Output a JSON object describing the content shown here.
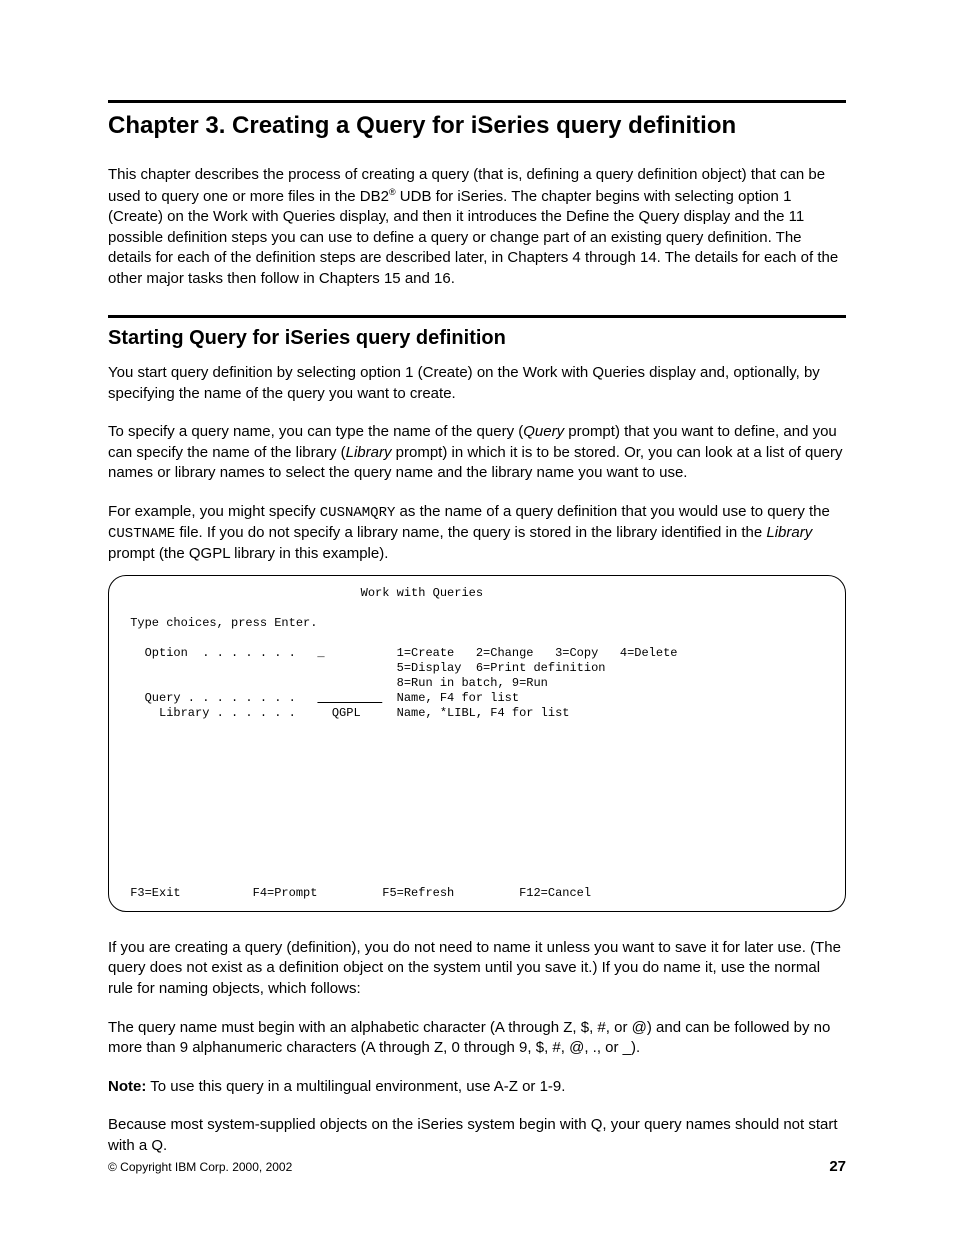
{
  "chapter": {
    "title": "Chapter 3. Creating a Query for iSeries query definition"
  },
  "intro_para": {
    "pre": "This chapter describes the process of creating a query (that is, defining a query definition object) that can be used to query one or more files in the DB2",
    "reg": "®",
    "post": " UDB for iSeries. The chapter begins with selecting option 1 (Create) on the Work with Queries display, and then it introduces the Define the Query display and the 11 possible definition steps you can use to define a query or change part of an existing query definition. The details for each of the definition steps are described later, in Chapters 4 through 14. The details for each of the other major tasks then follow in Chapters 15 and 16."
  },
  "section": {
    "title": "Starting Query for iSeries query definition"
  },
  "para1": "You start query definition by selecting option 1 (Create) on the Work with Queries display and, optionally, by specifying the name of the query you want to create.",
  "para2": {
    "a": "To specify a query name, you can type the name of the query (",
    "query": "Query",
    "b": " prompt) that you want to define, and you can specify the name of the library (",
    "library": "Library",
    "c": " prompt) in which it is to be stored. Or, you can look at a list of query names or library names to select the query name and the library name you want to use."
  },
  "para3": {
    "a": "For example, you might specify ",
    "code1": "CUSNAMQRY",
    "b": " as the name of a query definition that you would use to query the ",
    "code2": "CUSTNAME",
    "c": " file. If you do not specify a library name, the query is stored in the library identified in the ",
    "library": "Library",
    "d": " prompt (the QGPL library in this example)."
  },
  "terminal": {
    "title": "                                 Work with Queries",
    "blank": " ",
    "instr": " Type choices, press Enter.",
    "option_line": "   Option  . . . . . . .   _          1=Create   2=Change   3=Copy   4=Delete",
    "option_l2": "                                      5=Display  6=Print definition",
    "option_l3": "                                      8=Run in batch, 9=Run",
    "query_line_a": "   Query . . . . . . . .   ",
    "query_blank": "         ",
    "query_line_b": "  Name, F4 for list",
    "lib_line": "     Library . . . . . .     QGPL     Name, *LIBL, F4 for list",
    "fkeys": " F3=Exit          F4=Prompt         F5=Refresh         F12=Cancel"
  },
  "para4": "If you are creating a query (definition), you do not need to name it unless you want to save it for later use. (The query does not exist as a definition object on the system until you save it.) If you do name it, use the normal rule for naming objects, which follows:",
  "para5": "The query name must begin with an alphabetic character (A through Z, $, #, or @) and can be followed by no more than 9 alphanumeric characters (A through Z, 0 through 9, $, #, @, ., or _).",
  "note": {
    "label": "Note:",
    "text": " To use this query in a multilingual environment, use A-Z or 1-9."
  },
  "para6": "Because most system-supplied objects on the iSeries system begin with Q, your query names should not start with a Q.",
  "footer": {
    "copyright": "© Copyright IBM Corp. 2000, 2002",
    "page": "27"
  }
}
